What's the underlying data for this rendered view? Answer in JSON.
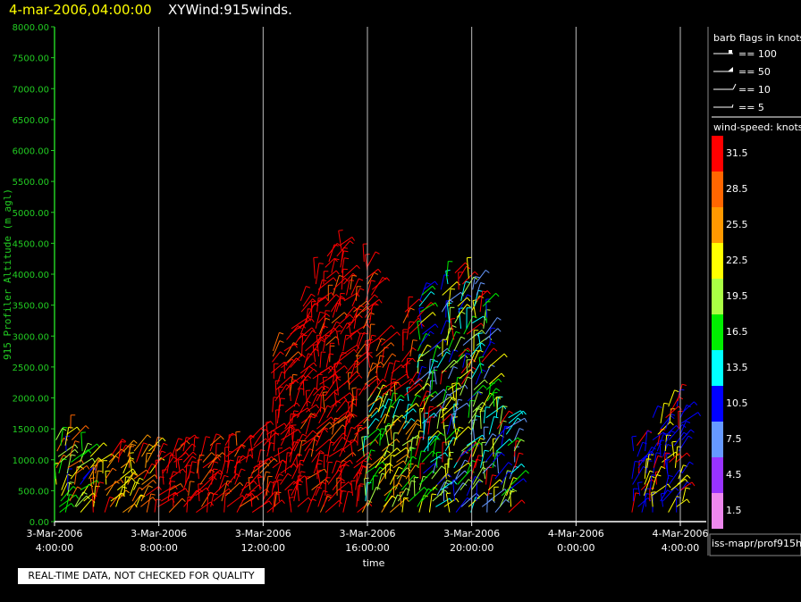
{
  "header": {
    "date_time": "4-mar-2006,04:00:00",
    "product": "XYWind:915winds."
  },
  "notice": "REAL-TIME DATA, NOT CHECKED FOR QUALITY",
  "source": "iss-mapr/prof915h",
  "legend": {
    "flags_title": "barb flags in knots",
    "flags": [
      "== 100",
      "== 50",
      "== 10",
      "== 5"
    ],
    "speed_title": "wind-speed: knots",
    "colorbar": [
      {
        "label": "31.5",
        "color": "#ff0000"
      },
      {
        "label": "28.5",
        "color": "#ff6600"
      },
      {
        "label": "25.5",
        "color": "#ff9900"
      },
      {
        "label": "22.5",
        "color": "#ffff00"
      },
      {
        "label": "19.5",
        "color": "#aaff44"
      },
      {
        "label": "16.5",
        "color": "#00ee00"
      },
      {
        "label": "13.5",
        "color": "#00ffff"
      },
      {
        "label": "10.5",
        "color": "#0000ff"
      },
      {
        "label": "7.5",
        "color": "#6699ff"
      },
      {
        "label": "4.5",
        "color": "#9933ff"
      },
      {
        "label": "1.5",
        "color": "#ee88ee"
      }
    ]
  },
  "chart_data": {
    "type": "scatter",
    "ylabel": "915 Profiler Altitude (m agl)",
    "xlabel": "time",
    "ylim": [
      0,
      8000
    ],
    "xlim": [
      "3-Mar-2006 4:00:00",
      "4-Mar-2006 4:00:00"
    ],
    "grid": "vertical",
    "y_ticks": [
      "0.00",
      "500.00",
      "1000.00",
      "1500.00",
      "2000.00",
      "2500.00",
      "3000.00",
      "3500.00",
      "4000.00",
      "4500.00",
      "5000.00",
      "5500.00",
      "6000.00",
      "6500.00",
      "7000.00",
      "7500.00",
      "8000.00"
    ],
    "x_ticks": [
      {
        "hours": 0,
        "date": "3-Mar-2006",
        "time": "4:00:00"
      },
      {
        "hours": 4,
        "date": "3-Mar-2006",
        "time": "8:00:00"
      },
      {
        "hours": 8,
        "date": "3-Mar-2006",
        "time": "12:00:00"
      },
      {
        "hours": 12,
        "date": "3-Mar-2006",
        "time": "16:00:00"
      },
      {
        "hours": 16,
        "date": "3-Mar-2006",
        "time": "20:00:00"
      },
      {
        "hours": 20,
        "date": "4-Mar-2006",
        "time": "0:00:00"
      },
      {
        "hours": 24,
        "date": "4-Mar-2006",
        "time": "4:00:00"
      }
    ],
    "series": [
      {
        "hours": [
          0.2,
          0.6,
          1.0,
          1.5,
          2.0,
          2.5,
          3.0,
          3.5,
          4.0,
          4.5,
          5.0,
          5.5,
          6.0,
          6.5,
          7.0,
          7.5,
          8.0,
          8.5,
          9.0,
          9.5,
          10.0,
          10.5,
          11.0,
          11.5,
          12.0,
          12.5,
          13.0,
          13.5,
          14.0,
          14.5,
          15.0,
          15.5,
          16.0,
          16.5,
          17.0,
          17.5,
          22.3,
          22.7,
          23.1,
          23.5,
          23.9
        ],
        "tops": [
          1400,
          1500,
          1200,
          1100,
          1100,
          1150,
          1150,
          1150,
          1150,
          1200,
          1300,
          1200,
          1250,
          1250,
          1250,
          1400,
          1500,
          2800,
          3200,
          3600,
          4000,
          4300,
          4500,
          3800,
          4200,
          3000,
          2400,
          3400,
          3800,
          2800,
          4000,
          4100,
          4000,
          3500,
          1900,
          1700,
          1300,
          1200,
          1700,
          1900,
          2000
        ]
      }
    ]
  }
}
